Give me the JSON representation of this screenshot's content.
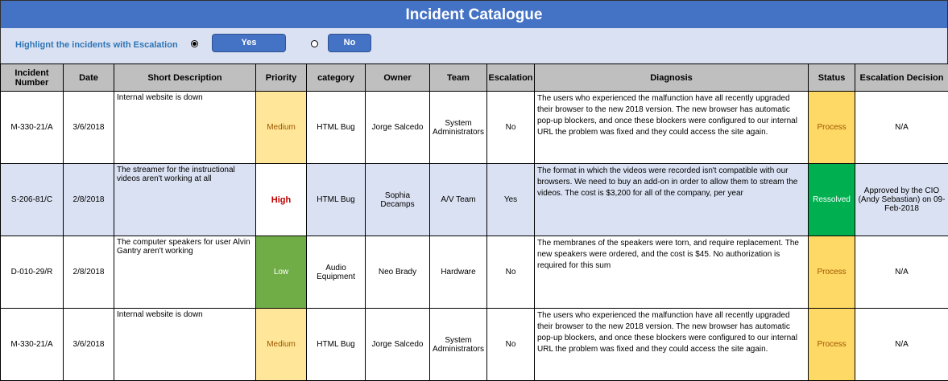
{
  "title": "Incident Catalogue",
  "filter": {
    "label": "Highlignt the incidents with  Escalation",
    "yes_label": "Yes",
    "no_label": "No",
    "selected": "Yes"
  },
  "columns": [
    "Incident Number",
    "Date",
    "Short Description",
    "Priority",
    "category",
    "Owner",
    "Team",
    "Escalation",
    "Diagnosis",
    "Status",
    "Escalation Decision"
  ],
  "colors": {
    "header": "#4472C4",
    "panel": "#DAE1F2",
    "medium": "#FFE699",
    "low": "#70AD47",
    "process": "#FFD966",
    "resolved": "#00B050",
    "high_text": "#C00000"
  },
  "rows": [
    {
      "number": "M-330-21/A",
      "date": "3/6/2018",
      "description": "Internal website is down",
      "priority": "Medium",
      "category": "HTML Bug",
      "owner": "Jorge Salcedo",
      "team": "System Administrators",
      "escalation": "No",
      "diagnosis": "The users who experienced the malfunction have all recently upgraded their browser to the new 2018 version. The new browser has automatic pop-up blockers, and once these blockers were configured to our internal URL the problem was fixed and they could access the site again.",
      "status": "Process",
      "decision": "N/A"
    },
    {
      "number": "S-206-81/C",
      "date": "2/8/2018",
      "description": "The streamer for the instructional videos aren't working at all",
      "priority": "High",
      "category": "HTML Bug",
      "owner": "Sophia Decamps",
      "team": "A/V Team",
      "escalation": "Yes",
      "diagnosis": "The format in which the videos were recorded isn't compatible with our browsers. We need to buy an add-on in order to allow them to stream the videos. The cost is $3,200 for all of the company, per year",
      "status": "Ressolved",
      "decision": "Approved by the CIO (Andy Sebastian) on 09-Feb-2018"
    },
    {
      "number": "D-010-29/R",
      "date": "2/8/2018",
      "description": "The computer speakers for user Alvin Gantry aren't working",
      "priority": "Low",
      "category": "Audio Equipment",
      "owner": "Neo Brady",
      "team": "Hardware",
      "escalation": "No",
      "diagnosis": "The membranes of the speakers were torn, and require replacement. The new speakers were ordered, and the cost is $45. No authorization is required for this sum",
      "status": "Process",
      "decision": "N/A"
    },
    {
      "number": "M-330-21/A",
      "date": "3/6/2018",
      "description": "Internal website is down",
      "priority": "Medium",
      "category": "HTML Bug",
      "owner": "Jorge Salcedo",
      "team": "System Administrators",
      "escalation": "No",
      "diagnosis": "The users who experienced the malfunction have all recently upgraded their browser to the new 2018 version. The new browser has automatic pop-up blockers, and once these blockers were configured to our internal URL the problem was fixed and they could access the site again.",
      "status": "Process",
      "decision": "N/A"
    }
  ]
}
